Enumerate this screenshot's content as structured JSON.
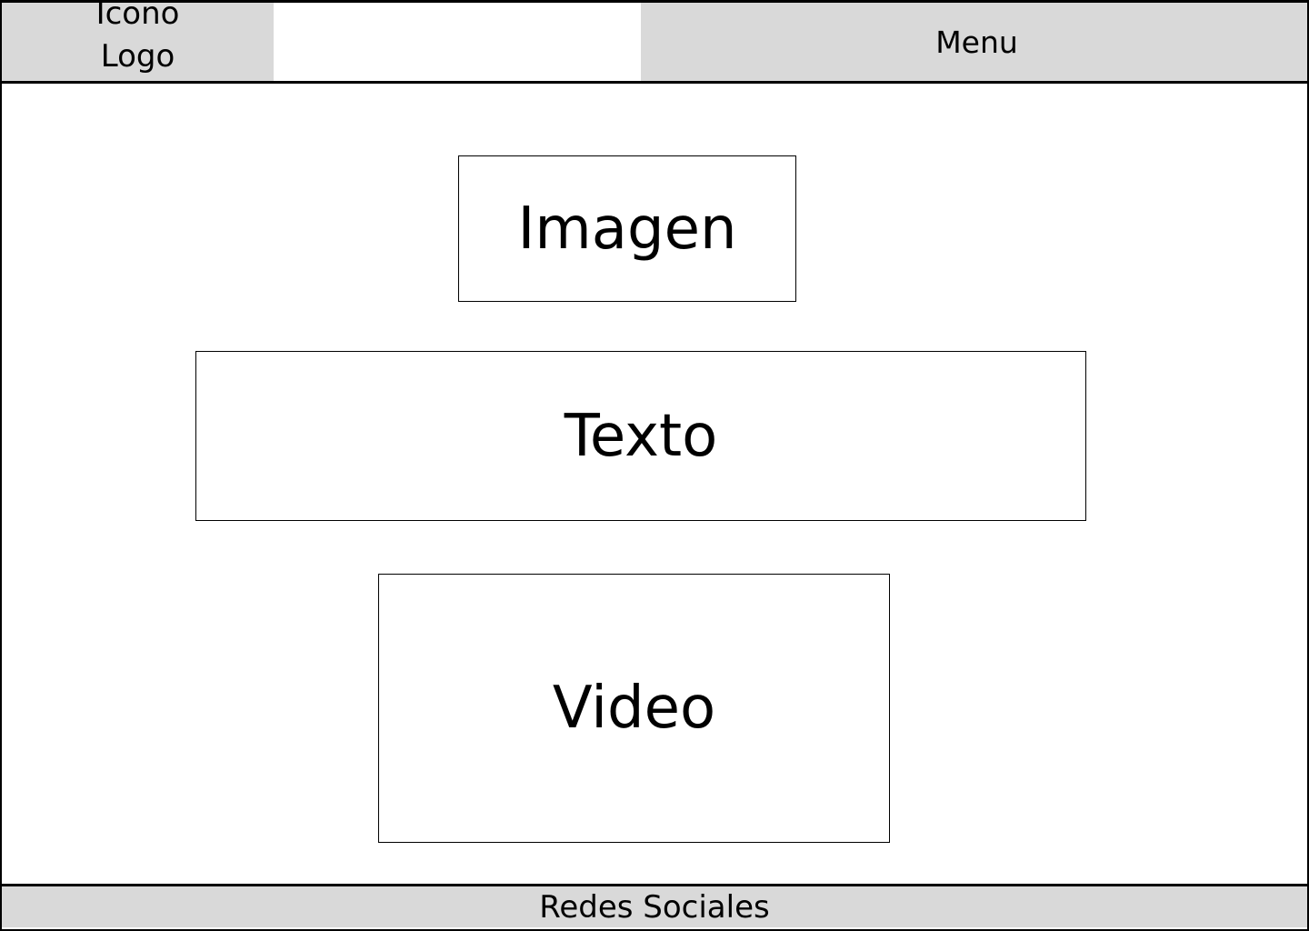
{
  "header": {
    "logo_text": "Icono\nLogo",
    "menu_label": "Menu"
  },
  "main": {
    "image_label": "Imagen",
    "text_label": "Texto",
    "video_label": "Video"
  },
  "footer": {
    "social_label": "Redes Sociales"
  },
  "colors": {
    "panel_gray": "#d9d9d9",
    "border": "#000000",
    "background": "#ffffff"
  }
}
